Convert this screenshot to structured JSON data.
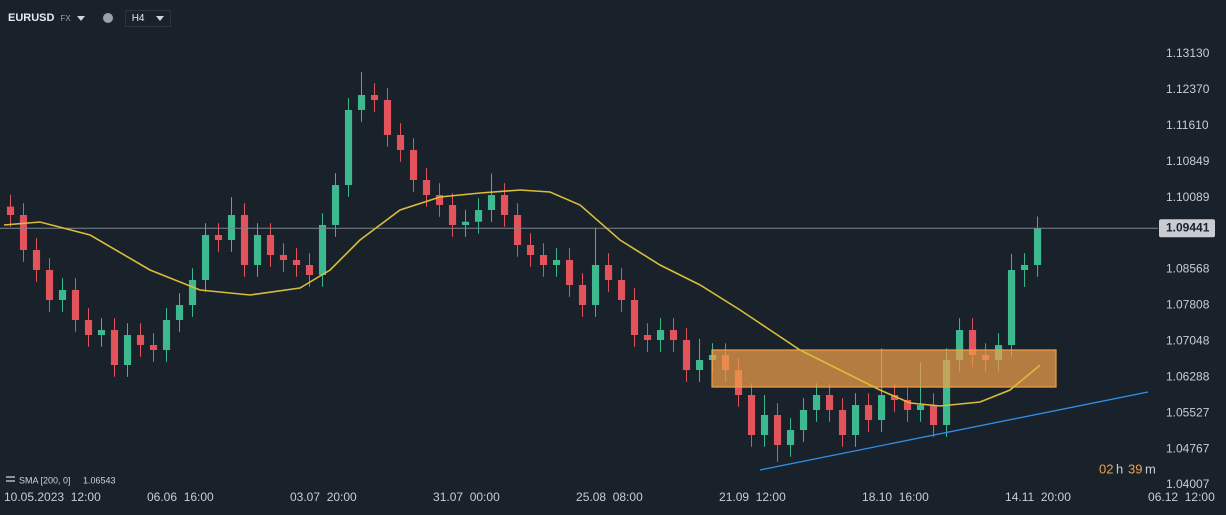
{
  "header": {
    "symbol": "EURUSD",
    "market": "FX",
    "timeframe": "H4"
  },
  "chart_data": {
    "type": "candlestick",
    "up_color": "#3cb98e",
    "down_color": "#e2535c",
    "candles": [
      [
        1.099,
        1.1015,
        1.09472,
        1.09722
      ],
      [
        1.09722,
        1.09972,
        1.08731,
        1.08981
      ],
      [
        1.08981,
        1.09231,
        1.08308,
        1.08558
      ],
      [
        1.08558,
        1.08808,
        1.07673,
        1.07923
      ],
      [
        1.07923,
        1.08385,
        1.07673,
        1.08135
      ],
      [
        1.08135,
        1.08385,
        1.0725,
        1.075
      ],
      [
        1.075,
        1.0775,
        1.06932,
        1.07182
      ],
      [
        1.07182,
        1.07538,
        1.06932,
        1.07288
      ],
      [
        1.07288,
        1.07538,
        1.063,
        1.06547
      ],
      [
        1.06547,
        1.07432,
        1.06297,
        1.07182
      ],
      [
        1.07182,
        1.07432,
        1.0672,
        1.0697
      ],
      [
        1.0697,
        1.0722,
        1.06615,
        1.06865
      ],
      [
        1.06865,
        1.0775,
        1.06615,
        1.075
      ],
      [
        1.075,
        1.08067,
        1.0725,
        1.07817
      ],
      [
        1.07817,
        1.08596,
        1.07567,
        1.08346
      ],
      [
        1.08346,
        1.09549,
        1.08096,
        1.09299
      ],
      [
        1.09299,
        1.09549,
        1.08943,
        1.09193
      ],
      [
        1.09193,
        1.101,
        1.08943,
        1.09722
      ],
      [
        1.09722,
        1.09972,
        1.08414,
        1.08664
      ],
      [
        1.08664,
        1.09549,
        1.08414,
        1.09299
      ],
      [
        1.09299,
        1.09549,
        1.08625,
        1.08875
      ],
      [
        1.08875,
        1.09125,
        1.0852,
        1.0877
      ],
      [
        1.0877,
        1.0902,
        1.08414,
        1.08664
      ],
      [
        1.08664,
        1.08914,
        1.08202,
        1.08452
      ],
      [
        1.08452,
        1.0976,
        1.08202,
        1.0951
      ],
      [
        1.0951,
        1.10607,
        1.0926,
        1.10357
      ],
      [
        1.10357,
        1.12195,
        1.10107,
        1.11945
      ],
      [
        1.11945,
        1.1275,
        1.11695,
        1.12262
      ],
      [
        1.12262,
        1.12512,
        1.11906,
        1.12156
      ],
      [
        1.12156,
        1.12406,
        1.11166,
        1.11416
      ],
      [
        1.11416,
        1.11666,
        1.10848,
        1.11098
      ],
      [
        1.11098,
        1.11348,
        1.10213,
        1.10463
      ],
      [
        1.10463,
        1.10713,
        1.09895,
        1.10145
      ],
      [
        1.10145,
        1.10395,
        1.09684,
        1.09934
      ],
      [
        1.09934,
        1.10184,
        1.0926,
        1.0951
      ],
      [
        1.0951,
        1.0983,
        1.0926,
        1.0958
      ],
      [
        1.0958,
        1.10078,
        1.0933,
        1.09828
      ],
      [
        1.09828,
        1.106,
        1.09578,
        1.10145
      ],
      [
        1.10145,
        1.10395,
        1.09472,
        1.09722
      ],
      [
        1.09722,
        1.09972,
        1.08837,
        1.09087
      ],
      [
        1.09087,
        1.09337,
        1.08625,
        1.08875
      ],
      [
        1.08875,
        1.09125,
        1.08414,
        1.08664
      ],
      [
        1.08664,
        1.0902,
        1.08414,
        1.0877
      ],
      [
        1.0877,
        1.0902,
        1.0799,
        1.0824
      ],
      [
        1.0824,
        1.0849,
        1.07567,
        1.07817
      ],
      [
        1.07817,
        1.0945,
        1.07567,
        1.08664
      ],
      [
        1.08664,
        1.08914,
        1.08096,
        1.08346
      ],
      [
        1.08346,
        1.08596,
        1.07673,
        1.07923
      ],
      [
        1.07923,
        1.08173,
        1.06932,
        1.07182
      ],
      [
        1.07182,
        1.07432,
        1.06826,
        1.07076
      ],
      [
        1.07076,
        1.07538,
        1.06826,
        1.07288
      ],
      [
        1.07288,
        1.07538,
        1.06826,
        1.07076
      ],
      [
        1.07076,
        1.07326,
        1.06191,
        1.06441
      ],
      [
        1.06441,
        1.071,
        1.06191,
        1.06653
      ],
      [
        1.06653,
        1.07009,
        1.06403,
        1.06759
      ],
      [
        1.06759,
        1.07009,
        1.06191,
        1.06441
      ],
      [
        1.06441,
        1.06691,
        1.05662,
        1.05912
      ],
      [
        1.05912,
        1.06162,
        1.04815,
        1.05065
      ],
      [
        1.05065,
        1.05912,
        1.04815,
        1.05489
      ],
      [
        1.05489,
        1.05739,
        1.045,
        1.04854
      ],
      [
        1.04854,
        1.05421,
        1.04604,
        1.05171
      ],
      [
        1.05171,
        1.05845,
        1.04921,
        1.05595
      ],
      [
        1.05595,
        1.06162,
        1.05345,
        1.05912
      ],
      [
        1.05912,
        1.06162,
        1.05345,
        1.05595
      ],
      [
        1.05595,
        1.05845,
        1.04815,
        1.05065
      ],
      [
        1.05065,
        1.0595,
        1.04815,
        1.057
      ],
      [
        1.057,
        1.0595,
        1.05133,
        1.05383
      ],
      [
        1.05383,
        1.069,
        1.05133,
        1.05912
      ],
      [
        1.05912,
        1.06162,
        1.05556,
        1.05806
      ],
      [
        1.05806,
        1.06056,
        1.05345,
        1.05595
      ],
      [
        1.05595,
        1.066,
        1.05345,
        1.057
      ],
      [
        1.057,
        1.0595,
        1.05027,
        1.05277
      ],
      [
        1.05277,
        1.06903,
        1.05027,
        1.06653
      ],
      [
        1.06653,
        1.07538,
        1.06403,
        1.07288
      ],
      [
        1.07288,
        1.07538,
        1.06509,
        1.06759
      ],
      [
        1.06759,
        1.07009,
        1.06403,
        1.06653
      ],
      [
        1.06653,
        1.0722,
        1.06403,
        1.0697
      ],
      [
        1.0697,
        1.089,
        1.0672,
        1.08558
      ],
      [
        1.08558,
        1.08914,
        1.082,
        1.08664
      ],
      [
        1.08664,
        1.09691,
        1.08414,
        1.09441
      ]
    ],
    "xlim": [
      -0.5,
      87.65
    ],
    "xticks": [
      {
        "value": -0.5,
        "label": "10.05.2023  12:00"
      },
      {
        "value": 10.5,
        "label": "06.06  16:00"
      },
      {
        "value": 21.5,
        "label": "03.07  20:00"
      },
      {
        "value": 32.5,
        "label": "31.07  00:00"
      },
      {
        "value": 43.5,
        "label": "25.08  08:00"
      },
      {
        "value": 54.5,
        "label": "21.09  12:00"
      },
      {
        "value": 65.5,
        "label": "18.10  16:00"
      },
      {
        "value": 76.5,
        "label": "14.11  20:00"
      },
      {
        "value": 87.5,
        "label": "06.12  12:00"
      }
    ],
    "ylim": [
      1.03965,
      1.14273
    ],
    "yticks": [
      {
        "value": 1.1313,
        "label": "1.13130"
      },
      {
        "value": 1.1237,
        "label": "1.12370"
      },
      {
        "value": 1.1161,
        "label": "1.11610"
      },
      {
        "value": 1.10849,
        "label": "1.10849"
      },
      {
        "value": 1.10089,
        "label": "1.10089"
      },
      {
        "value": 1.08568,
        "label": "1.08568"
      },
      {
        "value": 1.07808,
        "label": "1.07808"
      },
      {
        "value": 1.07048,
        "label": "1.07048"
      },
      {
        "value": 1.06288,
        "label": "1.06288"
      },
      {
        "value": 1.05527,
        "label": "1.05527"
      },
      {
        "value": 1.04767,
        "label": "1.04767"
      },
      {
        "value": 1.04007,
        "label": "1.04007"
      }
    ],
    "last_price": {
      "value": 1.09441,
      "label": "1.09441"
    },
    "countdown": {
      "hours": "02",
      "hours_unit": "h",
      "minutes": "39",
      "minutes_unit": "m"
    },
    "sma": {
      "label": "SMA [200, 0]",
      "value": 1.06543,
      "color": "#d8bd3a",
      "x": [
        -0.5,
        2.27,
        6.12,
        10.73,
        14.58,
        18.42,
        22.27,
        24.58,
        26.88,
        29.96,
        33.04,
        36.12,
        39.19,
        41.5,
        43.81,
        46.88,
        49.96,
        53.04,
        56.12,
        58.42,
        60.73,
        63.81,
        66.88,
        69.19,
        71.5,
        74.58,
        76.88,
        79.19
      ],
      "values": [
        1.0951,
        1.09574,
        1.09299,
        1.08558,
        1.08135,
        1.08029,
        1.08177,
        1.08558,
        1.09193,
        1.09828,
        1.10103,
        1.10188,
        1.10251,
        1.10209,
        1.09934,
        1.09193,
        1.08664,
        1.0824,
        1.07711,
        1.07288,
        1.06865,
        1.06441,
        1.06018,
        1.05743,
        1.05679,
        1.05764,
        1.06018,
        1.06543
      ]
    },
    "zone": {
      "x": [
        53.96,
        80.42
      ],
      "y": [
        1.06081,
        1.06865
      ],
      "color": "#f0a04a"
    },
    "trendline": {
      "x": [
        57.65,
        87.5
      ],
      "y": [
        1.04325,
        1.05976
      ],
      "color": "#2f8fe6"
    }
  }
}
